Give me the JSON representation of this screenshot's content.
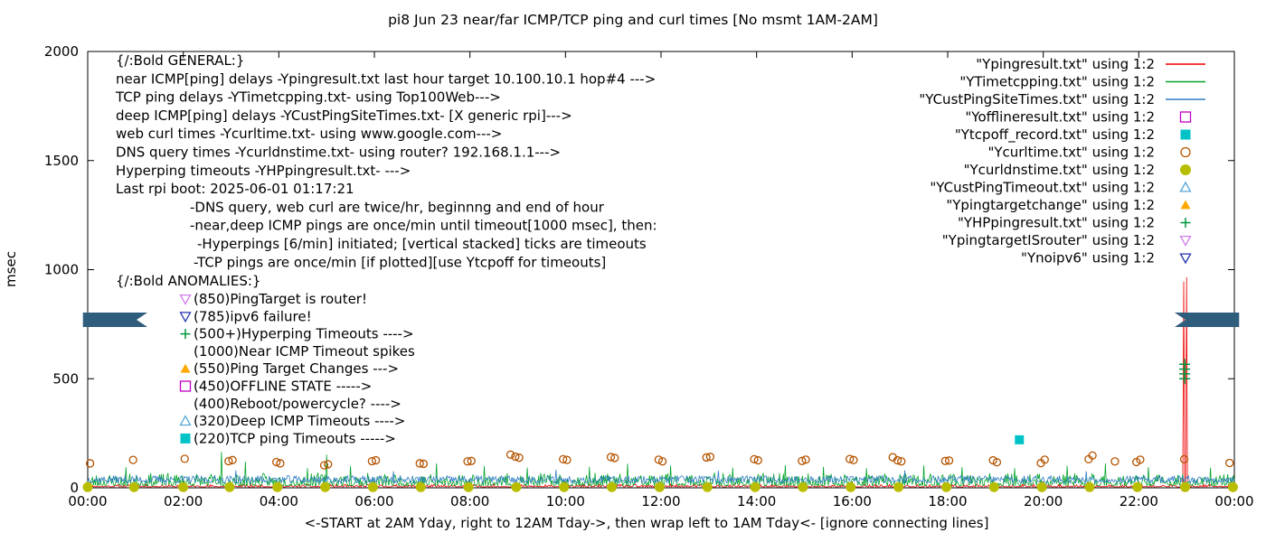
{
  "chart_data": {
    "type": "line+scatter (gnuplot time series)",
    "title": "pi8 Jun 23  near/far ICMP/TCP ping and curl times [No msmt 1AM-2AM]",
    "xlabel": "<-START at 2AM Yday, right to 12AM Tday->, then wrap left to 1AM Tday<- [ignore connecting lines]",
    "ylabel": "msec",
    "x_ticks": [
      "00:00",
      "02:00",
      "04:00",
      "06:00",
      "08:00",
      "10:00",
      "12:00",
      "14:00",
      "16:00",
      "18:00",
      "20:00",
      "22:00",
      "00:00"
    ],
    "y_ticks": [
      "0",
      "500",
      "1000",
      "1500",
      "2000"
    ],
    "x_range_hours": [
      0,
      24
    ],
    "ylim": [
      0,
      2000
    ],
    "grid": "off",
    "legend_position": "top-right inside",
    "legend": [
      {
        "label": "\"Ypingresult.txt\" using 1:2",
        "color": "#ee0000",
        "marker": "line"
      },
      {
        "label": "\"YTimetcpping.txt\" using 1:2",
        "color": "#00a428",
        "marker": "line"
      },
      {
        "label": "\"YCustPingSiteTimes.txt\" using 1:2",
        "color": "#2e7cc3",
        "marker": "line"
      },
      {
        "label": "\"Yofflineresult.txt\" using 1:2",
        "color": "#c400c4",
        "marker": "square-open"
      },
      {
        "label": "\"Ytcpoff_record.txt\" using 1:2",
        "color": "#00c3c8",
        "marker": "square-filled"
      },
      {
        "label": "\"Ycurltime.txt\" using 1:2",
        "color": "#b55400",
        "marker": "circle-open"
      },
      {
        "label": "\"Ycurldnstime.txt\" using 1:2",
        "color": "#b9bd00",
        "marker": "circle-filled"
      },
      {
        "label": "\"YCustPingTimeout.txt\" using 1:2",
        "color": "#58a6d6",
        "marker": "triangle-up-open"
      },
      {
        "label": "\"Ypingtargetchange\" using 1:2",
        "color": "#ffa800",
        "marker": "triangle-up-filled"
      },
      {
        "label": "\"YHPpingresult.txt\" using 1:2",
        "color": "#00963c",
        "marker": "plus"
      },
      {
        "label": "\"YpingtargetISrouter\" using 1:2",
        "color": "#d17ee8",
        "marker": "triangle-down-open"
      },
      {
        "label": "\"Ynoipv6\" using 1:2",
        "color": "#2233b0",
        "marker": "triangle-down-open"
      }
    ],
    "series": {
      "ping_near": {
        "name": "near ICMP ping (Ypingresult.txt)",
        "color": "#ee0000",
        "baseline": 4,
        "amplitude": 12,
        "shape": 3.0,
        "seed": 11,
        "spikes": [
          [
            22.93,
            945
          ],
          [
            22.99,
            965
          ]
        ]
      },
      "tcp_ping": {
        "name": "TCP ping (YTimetcpping.txt)",
        "color": "#00a428",
        "baseline": 10,
        "amplitude": 58,
        "shape": 2.2,
        "seed": 23,
        "spikes": [
          [
            0.8,
            95
          ],
          [
            2.8,
            165
          ],
          [
            3.3,
            120
          ],
          [
            4.6,
            90
          ],
          [
            5.0,
            152
          ],
          [
            5.5,
            100
          ],
          [
            7.3,
            112
          ],
          [
            8.3,
            100
          ],
          [
            9.2,
            92
          ],
          [
            10.5,
            96
          ],
          [
            11.3,
            110
          ],
          [
            12.2,
            102
          ],
          [
            13.5,
            92
          ],
          [
            14.6,
            104
          ],
          [
            15.4,
            96
          ],
          [
            16.3,
            90
          ],
          [
            17.5,
            103
          ],
          [
            18.3,
            95
          ],
          [
            19.4,
            90
          ],
          [
            20.5,
            101
          ],
          [
            21.3,
            112
          ],
          [
            22.2,
            95
          ],
          [
            23.5,
            92
          ]
        ]
      },
      "deep_icmp": {
        "name": "deep ICMP ping (YCustPingSiteTimes.txt)",
        "color": "#2e7cc3",
        "baseline": 22,
        "amplitude": 34,
        "shape": 1.2,
        "seed": 37,
        "spikes": [
          [
            3.1,
            80
          ],
          [
            6.4,
            76
          ],
          [
            9.8,
            82
          ],
          [
            13.2,
            78
          ],
          [
            17.1,
            80
          ],
          [
            20.9,
            76
          ]
        ]
      },
      "curl_times": {
        "name": "web curl times (Ycurltime.txt)",
        "color": "#b55400",
        "marker": "circle-open",
        "points": [
          [
            0.05,
            112
          ],
          [
            0.95,
            128
          ],
          [
            2.03,
            133
          ],
          [
            2.95,
            122
          ],
          [
            3.03,
            127
          ],
          [
            3.95,
            118
          ],
          [
            4.03,
            112
          ],
          [
            4.95,
            103
          ],
          [
            5.03,
            108
          ],
          [
            5.95,
            122
          ],
          [
            6.03,
            126
          ],
          [
            6.95,
            112
          ],
          [
            7.03,
            110
          ],
          [
            7.95,
            121
          ],
          [
            8.03,
            123
          ],
          [
            8.85,
            152
          ],
          [
            8.95,
            143
          ],
          [
            9.03,
            138
          ],
          [
            9.95,
            131
          ],
          [
            10.03,
            128
          ],
          [
            10.95,
            141
          ],
          [
            11.03,
            137
          ],
          [
            11.95,
            129
          ],
          [
            12.03,
            121
          ],
          [
            12.95,
            139
          ],
          [
            13.03,
            142
          ],
          [
            13.95,
            131
          ],
          [
            14.03,
            126
          ],
          [
            14.95,
            123
          ],
          [
            15.03,
            129
          ],
          [
            15.95,
            132
          ],
          [
            16.03,
            127
          ],
          [
            16.85,
            140
          ],
          [
            16.95,
            126
          ],
          [
            17.03,
            121
          ],
          [
            17.95,
            123
          ],
          [
            18.03,
            125
          ],
          [
            18.95,
            126
          ],
          [
            19.03,
            117
          ],
          [
            19.95,
            113
          ],
          [
            20.03,
            129
          ],
          [
            20.95,
            131
          ],
          [
            21.03,
            148
          ],
          [
            21.5,
            121
          ],
          [
            21.95,
            118
          ],
          [
            22.03,
            129
          ],
          [
            22.95,
            131
          ],
          [
            23.9,
            114
          ]
        ]
      },
      "dns_times": {
        "name": "DNS query times (Ycurldnstime.txt)",
        "color": "#b9bd00",
        "marker": "circle-filled",
        "points": [
          [
            0,
            3
          ],
          [
            0.97,
            3
          ],
          [
            2,
            3
          ],
          [
            2.97,
            3
          ],
          [
            3.97,
            3
          ],
          [
            4.97,
            3
          ],
          [
            5.97,
            3
          ],
          [
            6.97,
            3
          ],
          [
            7.97,
            3
          ],
          [
            8.97,
            3
          ],
          [
            9.97,
            3
          ],
          [
            10.97,
            3
          ],
          [
            11.97,
            3
          ],
          [
            12.97,
            3
          ],
          [
            13.97,
            3
          ],
          [
            14.97,
            3
          ],
          [
            15.97,
            3
          ],
          [
            16.97,
            3
          ],
          [
            17.97,
            3
          ],
          [
            18.97,
            3
          ],
          [
            19.97,
            3
          ],
          [
            20.97,
            3
          ],
          [
            21.97,
            3
          ],
          [
            22.97,
            3
          ],
          [
            23.97,
            3
          ]
        ]
      },
      "tcp_timeouts": {
        "name": "TCP ping timeouts (Ytcpoff_record.txt)",
        "color": "#00c3c8",
        "marker": "square-filled",
        "points": [
          [
            19.5,
            220
          ]
        ]
      },
      "hyperping_timeouts": {
        "name": "Hyperping timeouts (YHPpingresult.txt)",
        "color": "#00963c",
        "marker": "plus",
        "points": [
          [
            22.96,
            500
          ],
          [
            22.96,
            522
          ],
          [
            22.96,
            544
          ],
          [
            22.96,
            566
          ]
        ]
      },
      "offline_state": {
        "name": "offline state (Yofflineresult.txt)",
        "color": "#c400c4",
        "marker": "square-open",
        "points": []
      },
      "ping_target_change": {
        "name": "ping target changes (Ypingtargetchange)",
        "color": "#ffa800",
        "marker": "triangle-up-filled",
        "points": []
      },
      "deep_icmp_timeouts": {
        "name": "deep ICMP timeouts (YCustPingTimeout.txt)",
        "color": "#58a6d6",
        "marker": "triangle-up-open",
        "points": []
      },
      "ping_target_is_router": {
        "name": "ping target is router (YpingtargetISrouter)",
        "color": "#d17ee8",
        "marker": "triangle-down-open",
        "points": []
      },
      "no_ipv6": {
        "name": "no ipv6 (Ynoipv6)",
        "color": "#2233b0",
        "marker": "triangle-down-open",
        "points": []
      }
    },
    "wrap_bars": {
      "color": "#2f5d7c",
      "y_msec": 770,
      "bars": [
        {
          "from_h": -0.1,
          "to_h": 1.25,
          "notch": "right"
        },
        {
          "from_h": 22.75,
          "to_h": 24.1,
          "notch": "left"
        }
      ]
    },
    "annotations": {
      "general": [
        "{/:Bold GENERAL:}",
        "near ICMP[ping] delays -Ypingresult.txt last hour target 10.100.10.1 hop#4 --->",
        "TCP ping delays -YTimetcpping.txt- using Top100Web--->",
        "deep ICMP[ping] delays -YCustPingSiteTimes.txt- [X generic rpi]--->",
        "web curl times -Ycurltime.txt- using www.google.com--->",
        "DNS query times -Ycurldnstime.txt- using router? 192.168.1.1--->",
        "Hyperping timeouts -YHPpingresult.txt- --->",
        "Last rpi boot: 2025-06-01 01:17:21"
      ],
      "general_indented": [
        "-DNS query, web curl are twice/hr, beginnng and end of hour",
        "-near,deep ICMP pings are once/min until timeout[1000 msec], then:",
        "-Hyperpings [6/min] initiated; [vertical stacked] ticks are timeouts",
        "-TCP pings are once/min [if plotted][use Ytcpoff for timeouts]"
      ],
      "anomalies_header": "{/:Bold ANOMALIES:}",
      "anomalies": [
        {
          "marker": "triangle-down-open",
          "color": "#d17ee8",
          "text": "(850)PingTarget is router!"
        },
        {
          "marker": "triangle-down-open",
          "color": "#2233b0",
          "text": "(785)ipv6 failure!"
        },
        {
          "marker": "plus",
          "color": "#00963c",
          "text": "(500+)Hyperping Timeouts ---->"
        },
        {
          "marker": "none",
          "color": "",
          "text": "(1000)Near ICMP Timeout spikes"
        },
        {
          "marker": "triangle-up-filled",
          "color": "#ffa800",
          "text": "(550)Ping Target Changes --->"
        },
        {
          "marker": "square-open",
          "color": "#c400c4",
          "text": "(450)OFFLINE STATE ----->"
        },
        {
          "marker": "none",
          "color": "",
          "text": "(400)Reboot/powercycle? ---->"
        },
        {
          "marker": "triangle-up-open",
          "color": "#58a6d6",
          "text": "(320)Deep ICMP Timeouts ---->"
        },
        {
          "marker": "square-filled",
          "color": "#00c3c8",
          "text": "(220)TCP ping Timeouts ----->"
        }
      ]
    }
  }
}
